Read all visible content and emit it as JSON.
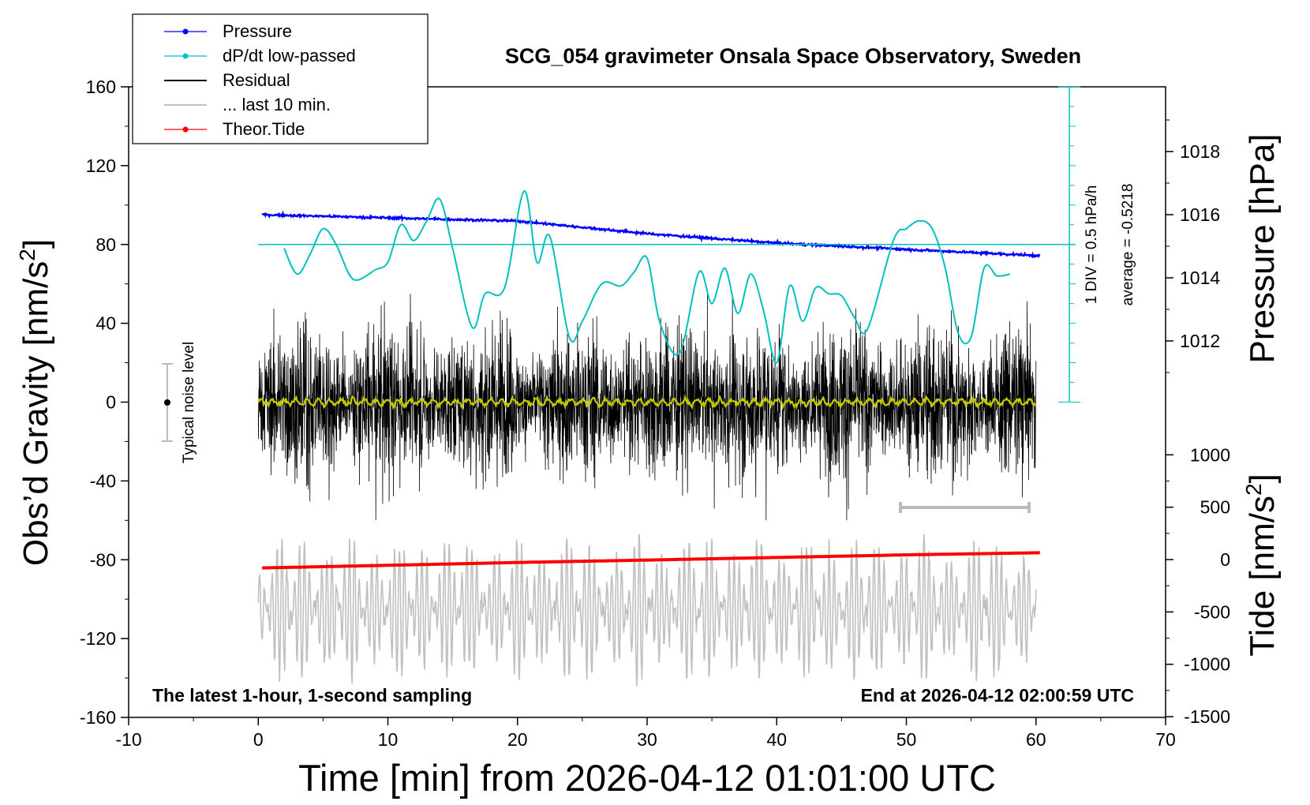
{
  "chart_data": {
    "type": "line",
    "title": "SCG_054 gravimeter Onsala Space Observatory, Sweden",
    "xlabel": "Time [min] from 2026-04-12 01:01:00 UTC",
    "ylabel_left_main": "Obs’d Gravity [nm/s",
    "ylabel_left_sup": "2",
    "ylabel_left_close": "]",
    "ylabel_right_pressure": "Pressure [hPa]",
    "ylabel_right_tide_main": "Tide [nm/s",
    "ylabel_right_tide_sup": "2",
    "ylabel_right_tide_close": "]",
    "xlim": [
      -10,
      70
    ],
    "ylim": [
      -160,
      160
    ],
    "x_ticks": [
      "-10",
      "0",
      "10",
      "20",
      "30",
      "40",
      "50",
      "60",
      "70"
    ],
    "y_ticks": [
      "-160",
      "-120",
      "-80",
      "-40",
      "0",
      "40",
      "80",
      "120",
      "160"
    ],
    "pressure_axis": {
      "ticks": [
        "1012",
        "1014",
        "1016",
        "1018"
      ],
      "values": [
        1012,
        1014,
        1016,
        1018
      ]
    },
    "tide_axis": {
      "ticks": [
        "-1500",
        "-1000",
        "-500",
        "0",
        "500",
        "1000"
      ],
      "values": [
        -1500,
        -1000,
        -500,
        0,
        500,
        1000
      ]
    },
    "legend_position": "top-left",
    "legend": [
      {
        "name": "Pressure",
        "color": "#0000ff",
        "style": "line-dot"
      },
      {
        "name": "dP/dt low-passed",
        "color": "#00c0c0",
        "style": "line-dot"
      },
      {
        "name": "Residual",
        "color": "#000000",
        "style": "line"
      },
      {
        "name": "... last 10 min.",
        "color": "#c0c0c0",
        "style": "line"
      },
      {
        "name": "Theor.Tide",
        "color": "#ff0000",
        "style": "line-dot"
      }
    ],
    "annotations": {
      "noise_label": "Typical noise level",
      "div_label": "1 DIV = 0.5 hPa/h",
      "average_label": "average = -0.5218",
      "bottom_left": "The latest 1-hour, 1-second sampling",
      "bottom_right": "End at 2026-04-12 02:00:59 UTC"
    },
    "series": [
      {
        "name": "Pressure",
        "color": "#0000ff",
        "x": [
          0.3,
          10,
          20,
          30,
          40,
          50,
          60.3
        ],
        "values": [
          1016.0,
          1015.9,
          1015.8,
          1015.4,
          1015.1,
          1014.9,
          1014.7
        ],
        "unit": "hPa"
      },
      {
        "name": "dP/dt low-passed",
        "color": "#00c0c0",
        "x": [
          2,
          3,
          4,
          5,
          6,
          7,
          7.7,
          9,
          10,
          11,
          12,
          13,
          14,
          15,
          16.5,
          17.5,
          19,
          20.5,
          21.5,
          22.5,
          24,
          25,
          26.5,
          28,
          29,
          30,
          31,
          32.5,
          34,
          35,
          36,
          37,
          38,
          39,
          40,
          41,
          42,
          43,
          44,
          45,
          46,
          47,
          49,
          50,
          51,
          52,
          53,
          54,
          55,
          56,
          57,
          58
        ],
        "values": [
          78,
          65,
          75,
          88,
          80,
          65,
          62,
          67,
          71,
          90,
          82,
          92,
          103,
          78,
          38,
          55,
          58,
          107,
          71,
          84,
          33,
          41,
          60,
          59,
          66,
          73,
          40,
          25,
          66,
          50,
          68,
          45,
          65,
          46,
          20,
          59,
          41,
          58,
          55,
          54,
          43,
          37,
          82,
          88,
          92,
          88,
          68,
          35,
          33,
          68,
          64,
          65
        ],
        "unit": "nm/s^2 scaled (1 DIV = 0.5 hPa/h)"
      },
      {
        "name": "dP/dt average level",
        "color": "#00c0c0",
        "x": [
          0,
          63
        ],
        "values": [
          80,
          80
        ]
      },
      {
        "name": "Residual",
        "color": "#000000",
        "x_range": [
          0,
          60
        ],
        "envelope": [
          -60,
          55
        ],
        "typical_amplitude": 25
      },
      {
        "name": "Residual smoothed",
        "color": "#c8c800",
        "x_range": [
          0,
          60
        ],
        "values_constant": 0
      },
      {
        "name": "... last 10 min.",
        "color": "#c0c0c0",
        "x_range": [
          0,
          60
        ],
        "center": -105,
        "envelope": [
          -168,
          -67
        ]
      },
      {
        "name": "Theor.Tide",
        "color": "#ff0000",
        "x": [
          0.3,
          10,
          20,
          30,
          40,
          50,
          60.3
        ],
        "values": [
          -80,
          -55,
          -28,
          -5,
          20,
          45,
          65
        ],
        "unit": "nm/s^2"
      }
    ]
  }
}
